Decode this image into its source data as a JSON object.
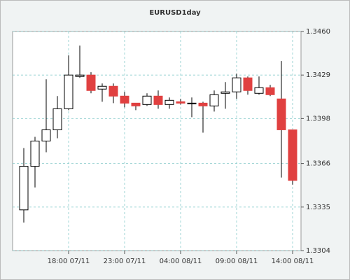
{
  "chart_data": {
    "type": "candlestick",
    "title": "EURUSD1day",
    "categories": [
      null,
      null,
      null,
      null,
      "18:00 07/11",
      null,
      null,
      null,
      null,
      "23:00 07/11",
      null,
      null,
      null,
      null,
      "04:00 08/11",
      null,
      null,
      null,
      null,
      "09:00 08/11",
      null,
      null,
      null,
      null,
      "14:00 08/11"
    ],
    "series": [
      {
        "open": [
          1.3333,
          1.3364,
          1.3382,
          1.339,
          1.3405,
          1.3428,
          1.3429,
          1.3419,
          1.3421,
          1.3414,
          1.3409,
          1.3408,
          1.3414,
          1.3408,
          1.341,
          1.3409,
          1.3409,
          1.3407,
          1.3416,
          1.3417,
          1.3427,
          1.3416,
          1.342,
          1.3412,
          1.339
        ],
        "high": [
          1.3377,
          1.3385,
          1.3426,
          1.3414,
          1.3443,
          1.345,
          1.3431,
          1.3423,
          1.3423,
          1.3417,
          1.3409,
          1.3416,
          1.3418,
          1.3413,
          1.3412,
          1.3413,
          1.341,
          1.3418,
          1.3424,
          1.343,
          1.3428,
          1.3428,
          1.3422,
          1.3439,
          1.339
        ],
        "low": [
          1.3324,
          1.3349,
          1.3374,
          1.3384,
          1.3404,
          1.3427,
          1.3416,
          1.341,
          1.3409,
          1.3406,
          1.3404,
          1.3407,
          1.3405,
          1.3405,
          1.3408,
          1.3399,
          1.3388,
          1.3403,
          1.3405,
          1.3412,
          1.3415,
          1.3415,
          1.3414,
          1.3356,
          1.3351
        ],
        "close": [
          1.3364,
          1.3382,
          1.339,
          1.3405,
          1.3429,
          1.3429,
          1.3418,
          1.3421,
          1.3414,
          1.3409,
          1.3407,
          1.3414,
          1.3408,
          1.3411,
          1.3409,
          1.3409,
          1.3407,
          1.3415,
          1.3417,
          1.3427,
          1.3418,
          1.342,
          1.3415,
          1.339,
          1.3354
        ]
      }
    ],
    "up_color": "#ffffff",
    "down_color": "#e04040",
    "ylim": [
      1.3304,
      1.346
    ],
    "yticks": [
      {
        "value": 1.346,
        "label": "1.3460"
      },
      1.3429,
      1.3398,
      1.3366,
      1.3335,
      1.3304
    ],
    "grid": true
  }
}
